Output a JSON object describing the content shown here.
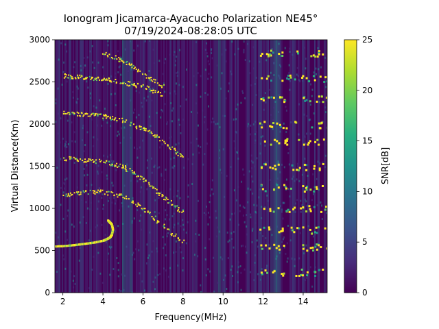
{
  "chart_data": {
    "type": "heatmap",
    "title": "Ionogram Jicamarca-Ayacucho Polarization NE45°",
    "subtitle": "07/19/2024-08:28:05 UTC",
    "xlabel": "Frequency(MHz)",
    "ylabel": "Virtual Distance(Km)",
    "xlim": [
      1.6,
      15.2
    ],
    "ylim": [
      0,
      3000
    ],
    "x_ticks": [
      2,
      4,
      6,
      8,
      10,
      12,
      14
    ],
    "y_ticks": [
      0,
      500,
      1000,
      1500,
      2000,
      2500,
      3000
    ],
    "colorbar": {
      "label": "SNR[dB]",
      "range": [
        0,
        25
      ],
      "ticks": [
        0,
        5,
        10,
        15,
        20,
        25
      ],
      "colormap": "viridis"
    },
    "traces": [
      {
        "kind": "echo",
        "points": [
          [
            1.6,
            560
          ],
          [
            2.0,
            565
          ],
          [
            2.5,
            575
          ],
          [
            3.0,
            590
          ],
          [
            3.5,
            605
          ],
          [
            4.0,
            630
          ],
          [
            4.3,
            665
          ],
          [
            4.4,
            700
          ],
          [
            4.45,
            760
          ],
          [
            4.4,
            820
          ],
          [
            4.2,
            870
          ]
        ]
      },
      {
        "kind": "echo",
        "points": [
          [
            2.0,
            1150
          ],
          [
            3.0,
            1200
          ],
          [
            4.0,
            1200
          ],
          [
            5.0,
            1150
          ],
          [
            6.0,
            1000
          ],
          [
            7.0,
            800
          ],
          [
            8.0,
            600
          ]
        ]
      },
      {
        "kind": "echo",
        "points": [
          [
            2.0,
            1600
          ],
          [
            3.0,
            1580
          ],
          [
            4.0,
            1560
          ],
          [
            5.0,
            1500
          ],
          [
            6.0,
            1350
          ],
          [
            7.0,
            1150
          ],
          [
            8.0,
            950
          ]
        ]
      },
      {
        "kind": "echo",
        "points": [
          [
            2.0,
            2150
          ],
          [
            3.0,
            2120
          ],
          [
            4.0,
            2100
          ],
          [
            5.0,
            2050
          ],
          [
            6.0,
            1950
          ],
          [
            7.0,
            1800
          ],
          [
            8.0,
            1600
          ]
        ]
      },
      {
        "kind": "echo",
        "points": [
          [
            2.0,
            2580
          ],
          [
            3.0,
            2560
          ],
          [
            4.0,
            2540
          ],
          [
            5.0,
            2500
          ],
          [
            6.0,
            2450
          ],
          [
            7.0,
            2350
          ]
        ]
      },
      {
        "kind": "echo",
        "points": [
          [
            4.0,
            2850
          ],
          [
            5.0,
            2750
          ],
          [
            6.0,
            2600
          ],
          [
            7.0,
            2450
          ]
        ]
      }
    ],
    "interference_bands_mhz": [
      5.2,
      9.9,
      12.6
    ],
    "scatter_ranges_km": [
      250,
      550,
      750,
      1000,
      1250,
      1500,
      1800,
      2000,
      2300,
      2550,
      2850
    ],
    "scatter_freq_range_mhz": [
      11.8,
      15.2
    ]
  },
  "colors": {
    "background": "#440154",
    "bright": "#fde725",
    "mid": "#21918c"
  }
}
